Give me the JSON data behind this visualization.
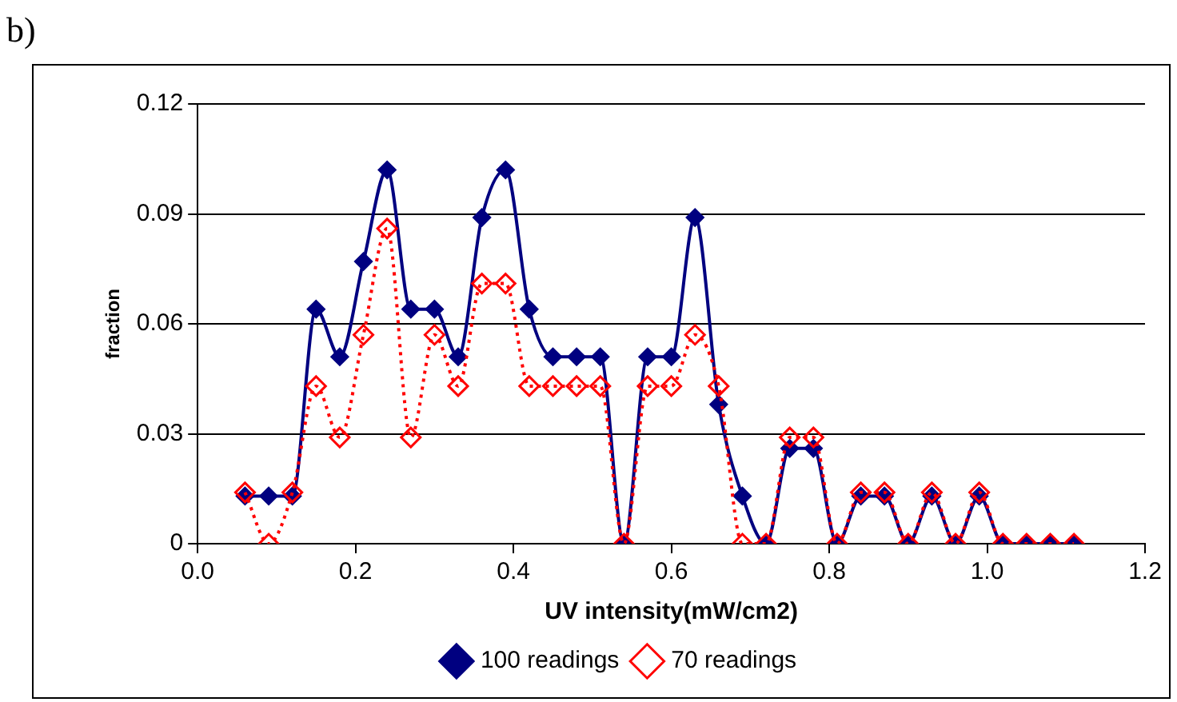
{
  "chart_data": {
    "type": "line",
    "xlabel": "UV intensity(mW/cm2)",
    "ylabel": "fraction",
    "annotations": [
      "b)"
    ],
    "x": [
      0.06,
      0.09,
      0.12,
      0.15,
      0.18,
      0.21,
      0.24,
      0.27,
      0.3,
      0.33,
      0.36,
      0.39,
      0.42,
      0.45,
      0.48,
      0.51,
      0.54,
      0.57,
      0.6,
      0.63,
      0.66,
      0.69,
      0.72,
      0.75,
      0.78,
      0.81,
      0.84,
      0.87,
      0.9,
      0.93,
      0.96,
      0.99,
      1.02,
      1.05,
      1.08,
      1.11
    ],
    "series": [
      {
        "name": "100 readings",
        "color": "#000080",
        "marker": "diamond",
        "line_style": "solid",
        "values": [
          0.013,
          0.013,
          0.013,
          0.064,
          0.051,
          0.077,
          0.102,
          0.064,
          0.064,
          0.051,
          0.089,
          0.102,
          0.064,
          0.051,
          0.051,
          0.051,
          0,
          0.051,
          0.051,
          0.089,
          0.038,
          0.013,
          0,
          0.026,
          0.026,
          0,
          0.013,
          0.013,
          0,
          0.013,
          0,
          0.013,
          0,
          0,
          0,
          0
        ]
      },
      {
        "name": "70 readings",
        "color": "#ff0000",
        "marker": "diamond",
        "line_style": "dotted",
        "values": [
          0.014,
          0,
          0.014,
          0.043,
          0.029,
          0.057,
          0.086,
          0.029,
          0.057,
          0.043,
          0.071,
          0.071,
          0.043,
          0.043,
          0.043,
          0.043,
          0,
          0.043,
          0.043,
          0.057,
          0.043,
          0,
          0,
          0.029,
          0.029,
          0,
          0.014,
          0.014,
          0,
          0.014,
          0,
          0.014,
          0,
          0,
          0,
          0
        ]
      }
    ],
    "xlim": [
      0,
      1.2
    ],
    "xticks": [
      {
        "value": 0,
        "label": "0.0"
      },
      0.2,
      0.4,
      0.6,
      0.8,
      {
        "value": 1,
        "label": "1.0"
      },
      1.2
    ],
    "ylim": [
      0,
      0.12
    ],
    "yticks": [
      0,
      0.03,
      0.06,
      0.09,
      0.12
    ],
    "grid": "y",
    "legend": "bottom"
  }
}
